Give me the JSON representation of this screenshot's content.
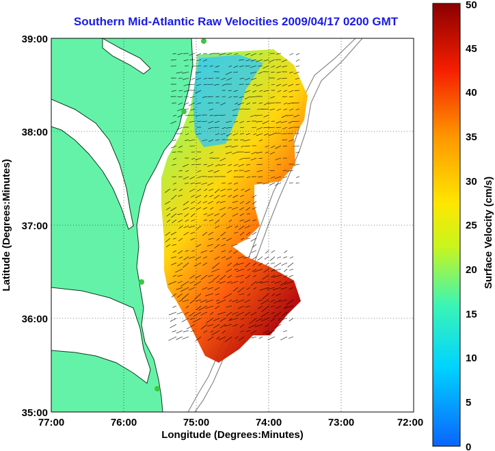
{
  "title": "Southern Mid-Atlantic Raw Velocities 2009/04/17 0200 GMT",
  "xaxis": {
    "label": "Longitude (Degrees:Minutes)",
    "ticks": [
      "77:00",
      "76:00",
      "75:00",
      "74:00",
      "73:00",
      "72:00"
    ]
  },
  "yaxis": {
    "label": "Latitude (Degrees:Minutes)",
    "ticks": [
      "39:00",
      "38:00",
      "37:00",
      "36:00",
      "35:00"
    ]
  },
  "colorbar": {
    "label": "Surface Velocity (cm/s)",
    "ticks": [
      "0",
      "5",
      "10",
      "15",
      "20",
      "25",
      "30",
      "35",
      "40",
      "45",
      "50"
    ],
    "min": 0,
    "max": 50,
    "colors": [
      "#0a64ff",
      "#00d4ff",
      "#3cf5b4",
      "#c8f51e",
      "#ffe600",
      "#ff9600",
      "#f51e00",
      "#8c0000"
    ]
  },
  "colors": {
    "land": "#64f2a8",
    "coastline": "#0a3a1a",
    "bathymetry": "#888888",
    "vectors": "#000000",
    "stations": "#3cc83c"
  },
  "legend_placement": "right",
  "grid": true
}
